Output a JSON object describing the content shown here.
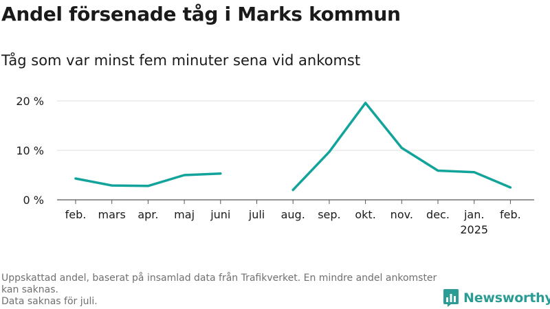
{
  "chart_data": {
    "type": "line",
    "title": "Andel försenade tåg i Marks kommun",
    "subtitle": "Tåg som var minst fem minuter sena vid ankomst",
    "categories": [
      "feb.",
      "mars",
      "apr.",
      "maj",
      "juni",
      "juli",
      "aug.",
      "sep.",
      "okt.",
      "nov.",
      "dec.",
      "jan.",
      "feb."
    ],
    "category_sublabels": [
      "",
      "",
      "",
      "",
      "",
      "",
      "",
      "",
      "",
      "",
      "",
      "2025",
      ""
    ],
    "series": [
      {
        "values": [
          4.3,
          2.9,
          2.8,
          5.0,
          5.3,
          null,
          2.0,
          9.7,
          19.6,
          10.5,
          5.9,
          5.6,
          2.5
        ]
      }
    ],
    "ylim": [
      0,
      20
    ],
    "yticks": [
      0,
      10,
      20
    ],
    "ytick_labels": [
      "0 %",
      "10 %",
      "20 %"
    ],
    "xlabel": "",
    "ylabel": "",
    "grid": true,
    "colors": {
      "line": "#12a39a",
      "grid": "#dddddd",
      "baseline": "#555555"
    }
  },
  "footnote": {
    "line1": "Uppskattad andel, baserat på insamlad data från Trafikverket. En mindre andel ankomster kan saknas.",
    "line2": "Data saknas för juli."
  },
  "brand": {
    "name": "Newsworthy",
    "icon": "bar-chart-logo-icon",
    "color": "#2a9c93"
  }
}
